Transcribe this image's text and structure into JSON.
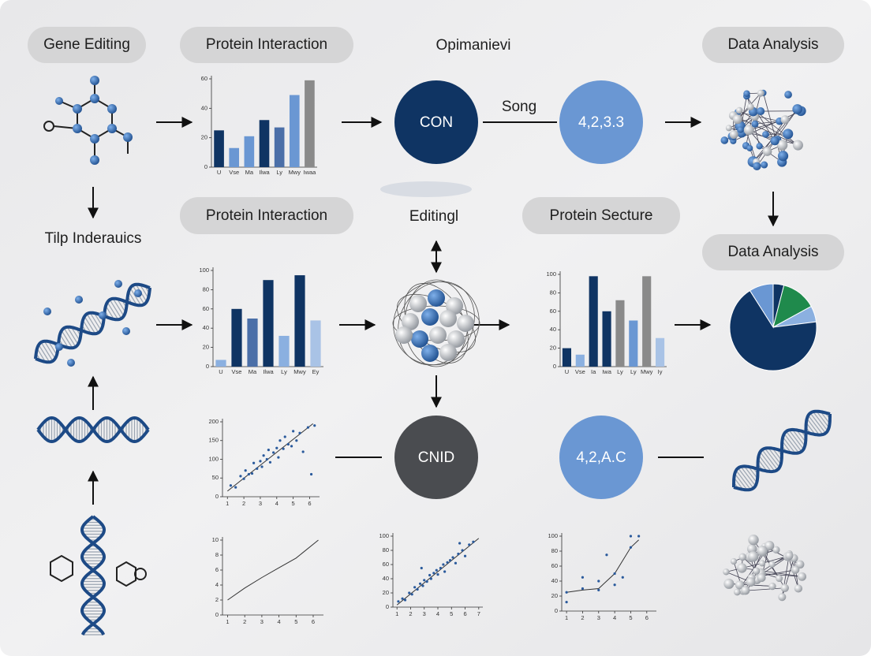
{
  "pills": [
    {
      "text": "Gene Editing"
    },
    {
      "text": "Protein Interaction"
    },
    {
      "text": "Data Analysis"
    },
    {
      "text": "Protein Interaction"
    },
    {
      "text": "Protein Secture"
    },
    {
      "text": "Data Analysis"
    }
  ],
  "labels": {
    "top_center": "Opimanievi",
    "middle_center": "Editingl",
    "left": "Tilp Inderauics",
    "link": "Song"
  },
  "circles": [
    {
      "text": "CON",
      "color": "#0f3463"
    },
    {
      "text": "4,2,3.3",
      "color": "#6a97d3"
    },
    {
      "text": "CNID",
      "color": "#4a4c50"
    },
    {
      "text": "4,2,A.C",
      "color": "#6a97d3"
    }
  ],
  "charts": [
    {
      "type": "bar",
      "ylim": [
        0,
        60
      ],
      "yticks": [
        0,
        20,
        40,
        60
      ],
      "categories": [
        "U",
        "Vse",
        "Ma",
        "Ilwa",
        "Ly",
        "Mwy",
        "Iwaa"
      ],
      "values": [
        25,
        13,
        21,
        32,
        27,
        49,
        59
      ],
      "colors": [
        "#0f3463",
        "#6a97d3",
        "#6a97d3",
        "#0f3463",
        "#4b6fa8",
        "#6a97d3",
        "#8a8a8a"
      ]
    },
    {
      "type": "bar",
      "ylim": [
        0,
        100
      ],
      "yticks": [
        0,
        20,
        40,
        60,
        80,
        100
      ],
      "categories": [
        "U",
        "Vse",
        "Ma",
        "Ilwa",
        "Ly",
        "Mwy",
        "Ey"
      ],
      "values": [
        7,
        60,
        50,
        90,
        32,
        95,
        48
      ],
      "colors": [
        "#8bb0e0",
        "#0f3463",
        "#4b6fa8",
        "#0f3463",
        "#8bb0e0",
        "#0f3463",
        "#a9c3e6"
      ]
    },
    {
      "type": "bar",
      "ylim": [
        0,
        100
      ],
      "yticks": [
        0,
        20,
        40,
        60,
        80,
        100
      ],
      "categories": [
        "U",
        "Vse",
        "Ia",
        "Iwa",
        "Ly",
        "Ly",
        "Mwy",
        "Iy"
      ],
      "values": [
        20,
        13,
        98,
        60,
        72,
        50,
        98,
        31
      ],
      "colors": [
        "#0f3463",
        "#8bb0e0",
        "#0f3463",
        "#0f3463",
        "#8a8a8a",
        "#6a97d3",
        "#8a8a8a",
        "#a9c3e6"
      ]
    },
    {
      "type": "pie",
      "values": [
        4,
        13,
        6,
        68,
        9
      ],
      "colors": [
        "#0f3463",
        "#1f8a4c",
        "#8bb0e0",
        "#0f3463",
        "#6a97d3"
      ]
    },
    {
      "type": "scatter",
      "ylim": [
        0,
        200
      ],
      "yticks": [
        0,
        50,
        100,
        150,
        200
      ],
      "xlim": [
        0.7,
        6.6
      ],
      "xticks": [
        1,
        2,
        3,
        4,
        5,
        6
      ],
      "x": [
        1.2,
        1.5,
        1.8,
        2.0,
        2.1,
        2.3,
        2.5,
        2.6,
        2.8,
        3.0,
        3.1,
        3.2,
        3.4,
        3.5,
        3.6,
        3.8,
        4.0,
        4.1,
        4.2,
        4.4,
        4.5,
        4.7,
        4.9,
        5.0,
        5.2,
        5.4,
        5.6,
        5.9,
        6.1,
        6.3
      ],
      "values": [
        30,
        25,
        55,
        48,
        70,
        60,
        62,
        90,
        75,
        95,
        80,
        110,
        100,
        125,
        92,
        118,
        130,
        105,
        150,
        128,
        160,
        140,
        135,
        175,
        150,
        170,
        120,
        185,
        60,
        190
      ],
      "trend_x": [
        1,
        6.2
      ],
      "trend_values": [
        15,
        195
      ]
    },
    {
      "type": "line",
      "ylim": [
        0,
        10
      ],
      "yticks": [
        0,
        2,
        4,
        6,
        8,
        10
      ],
      "xlim": [
        0.7,
        6.6
      ],
      "xticks": [
        1,
        2,
        3,
        4,
        5,
        6
      ],
      "x": [
        1,
        2,
        3,
        4,
        5,
        6.3
      ],
      "values": [
        2,
        3.6,
        5,
        6.3,
        7.6,
        10
      ]
    },
    {
      "type": "scatter",
      "ylim": [
        0,
        100
      ],
      "yticks": [
        0,
        20,
        40,
        60,
        80,
        100
      ],
      "xlim": [
        0.7,
        7.3
      ],
      "xticks": [
        1,
        2,
        3,
        4,
        5,
        6,
        7
      ],
      "x": [
        1.1,
        1.4,
        1.6,
        1.9,
        2.1,
        2.3,
        2.5,
        2.7,
        2.9,
        3.0,
        3.2,
        3.4,
        3.5,
        3.7,
        3.9,
        4.0,
        4.2,
        4.4,
        4.5,
        4.7,
        4.9,
        5.1,
        5.3,
        5.5,
        5.8,
        6.0,
        6.3,
        6.6,
        5.6,
        2.8
      ],
      "values": [
        8,
        12,
        10,
        20,
        18,
        28,
        25,
        33,
        30,
        38,
        36,
        45,
        40,
        48,
        52,
        46,
        55,
        60,
        50,
        63,
        66,
        70,
        62,
        75,
        80,
        72,
        88,
        92,
        90,
        55
      ],
      "trend_x": [
        1,
        7
      ],
      "trend_values": [
        3,
        97
      ]
    },
    {
      "type": "scatter",
      "ylim": [
        0,
        100
      ],
      "yticks": [
        0,
        20,
        40,
        60,
        80,
        100
      ],
      "xlim": [
        0.7,
        6.6
      ],
      "xticks": [
        1,
        2,
        3,
        4,
        5,
        6
      ],
      "x": [
        1,
        1,
        2,
        2,
        3,
        3,
        3.5,
        4,
        4,
        4.5,
        5,
        5,
        5.5
      ],
      "values": [
        12,
        25,
        30,
        45,
        40,
        28,
        75,
        35,
        50,
        45,
        100,
        85,
        100
      ],
      "trend_x": [
        1,
        2,
        3,
        3.3,
        4,
        5,
        5.5
      ],
      "trend_values": [
        25,
        28,
        30,
        36,
        50,
        85,
        95
      ]
    }
  ]
}
